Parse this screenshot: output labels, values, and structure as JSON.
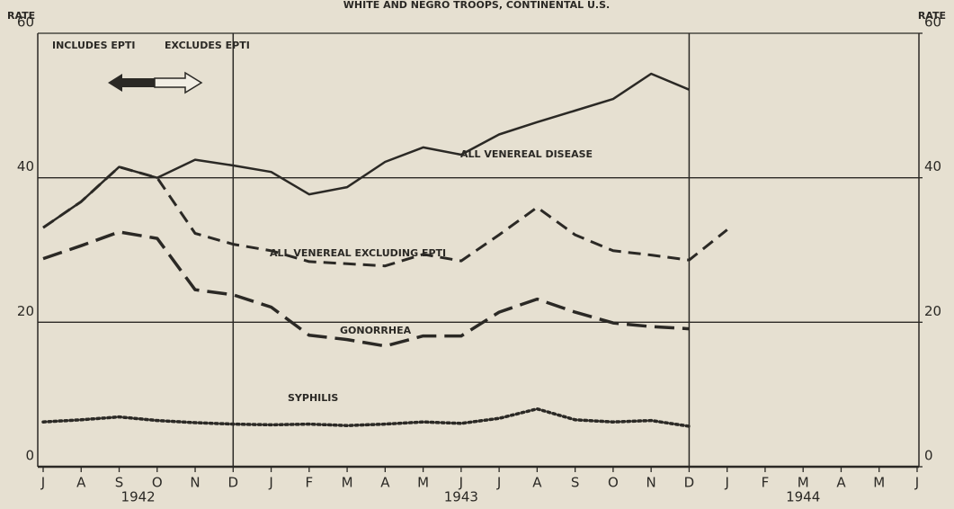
{
  "chart_data": {
    "type": "line",
    "title": "WHITE AND NEGRO TROOPS, CONTINENTAL U.S.",
    "y_label": "RATE",
    "y2_label": "RATE",
    "categories": [
      "J",
      "A",
      "S",
      "O",
      "N",
      "D",
      "J",
      "F",
      "M",
      "A",
      "M",
      "J",
      "J",
      "A",
      "S",
      "O",
      "N",
      "D",
      "J",
      "F",
      "M",
      "A",
      "M",
      "J"
    ],
    "year_labels": [
      "1942",
      "1943",
      "1944"
    ],
    "annotations": [
      "INCLUDES EPTI",
      "EXCLUDES EPTI"
    ],
    "ylim": [
      0,
      60
    ],
    "yticks": [
      0,
      20,
      40,
      60
    ],
    "y2lim": [
      0,
      60
    ],
    "y2ticks": [
      0,
      20,
      40,
      60
    ],
    "grid": true,
    "series": [
      {
        "name": "ALL VENEREAL DISEASE",
        "color": "#2b2925",
        "style": "solid",
        "values": [
          33.1,
          36.7,
          41.5,
          40,
          42.5,
          41.7,
          40.8,
          37.7,
          38.7,
          42.2,
          44.2,
          43.2,
          46,
          47.7,
          49.3,
          50.9,
          54.4,
          52.2,
          null,
          null,
          null,
          null,
          null,
          null
        ]
      },
      {
        "name": "ALL VENEREAL EXCLUDING EPTI",
        "color": "#2b2925",
        "style": "dashed",
        "values": [
          33.1,
          36.7,
          41.5,
          40,
          32.3,
          30.8,
          29.9,
          28.4,
          28.1,
          27.8,
          29.4,
          28.5,
          32.1,
          35.9,
          32.1,
          29.9,
          29.3,
          28.6,
          32.8,
          null,
          null,
          null,
          null,
          null
        ]
      },
      {
        "name": "GONORRHEA",
        "color": "#2b2925",
        "style": "longdash",
        "values": [
          28.8,
          30.6,
          32.5,
          31.6,
          24.5,
          23.8,
          22.1,
          18.2,
          17.6,
          16.7,
          18.1,
          18.1,
          21.4,
          23.2,
          21.4,
          19.9,
          19.4,
          19.1,
          null,
          null,
          null,
          null,
          null,
          null
        ]
      },
      {
        "name": "SYPHILIS",
        "color": "#2b2925",
        "style": "dotted",
        "values": [
          6.2,
          6.5,
          6.9,
          6.4,
          6.1,
          5.9,
          5.8,
          5.9,
          5.7,
          5.9,
          6.2,
          6.0,
          6.7,
          8.0,
          6.5,
          6.2,
          6.4,
          5.6,
          null,
          null,
          null,
          null,
          null,
          null
        ]
      }
    ]
  }
}
